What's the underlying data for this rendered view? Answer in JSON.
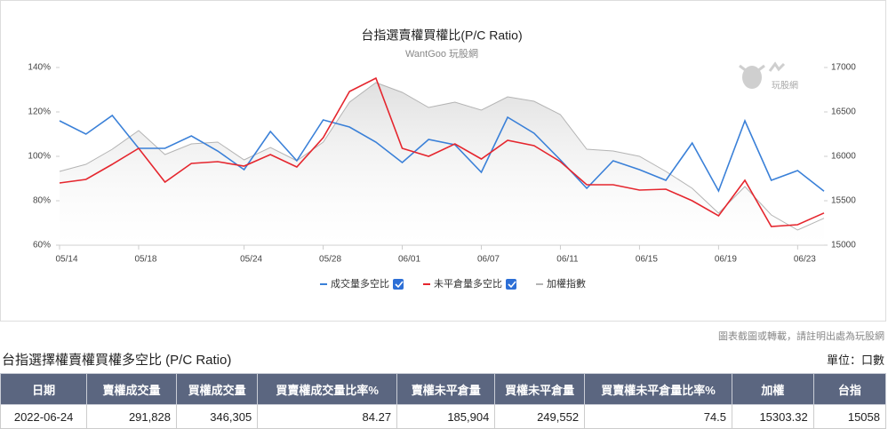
{
  "chart_data": {
    "type": "line",
    "title": "台指選賣權買權比(P/C Ratio)",
    "subtitle": "WantGoo 玩股網",
    "watermark": "玩股網",
    "categories": [
      "05/14",
      null,
      null,
      "05/18",
      null,
      null,
      null,
      "05/24",
      null,
      null,
      "05/28",
      null,
      null,
      "06/01",
      null,
      null,
      "06/07",
      null,
      null,
      "06/11",
      null,
      null,
      "06/15",
      null,
      null,
      "06/19",
      null,
      null,
      "06/23",
      null
    ],
    "ylim": [
      60,
      140
    ],
    "yticks": [
      {
        "value": 60,
        "label": "60%"
      },
      {
        "value": 80,
        "label": "80%"
      },
      {
        "value": 100,
        "label": "100%"
      },
      {
        "value": 120,
        "label": "120%"
      },
      {
        "value": 140,
        "label": "140%"
      }
    ],
    "y2lim": [
      15000,
      17000
    ],
    "y2ticks": [
      15000,
      15500,
      16000,
      16500,
      17000
    ],
    "series": [
      {
        "name": "成交量多空比",
        "color": "#3a80d8",
        "values": [
          116,
          110,
          118.4,
          103.6,
          103.6,
          109.2,
          102.4,
          94,
          111.2,
          98,
          116.4,
          113.2,
          106.4,
          97.2,
          107.6,
          105.2,
          92.8,
          117.6,
          110.4,
          98.4,
          85.6,
          98,
          94,
          89.2,
          106,
          84.4,
          116,
          89.2,
          93.6,
          84.27
        ]
      },
      {
        "name": "未平倉量多空比",
        "color": "#e5262e",
        "values": [
          88,
          89.6,
          96.4,
          103.6,
          88.4,
          96.8,
          97.6,
          95.6,
          100.8,
          95.2,
          108.4,
          129.2,
          135.2,
          103.6,
          100,
          105.6,
          98.8,
          107.2,
          104.8,
          97.6,
          87.2,
          87.2,
          84.8,
          85.2,
          80,
          73.2,
          89.2,
          68.4,
          69.2,
          74.5
        ]
      },
      {
        "name": "加權指數",
        "color": "#b4b4b4",
        "axis": "y2",
        "values": [
          15830,
          15910,
          16080,
          16290,
          16020,
          16140,
          16160,
          15960,
          16100,
          15950,
          16160,
          16610,
          16830,
          16720,
          16550,
          16610,
          16520,
          16670,
          16620,
          16470,
          16080,
          16060,
          16000,
          15830,
          15640,
          15360,
          15660,
          15340,
          15170,
          15303.32
        ]
      }
    ],
    "grid": false
  },
  "table": {
    "note": "圖表截圖或轉載，請註明出處為玩股網",
    "title": "台指選擇權賣權買權多空比 (P/C Ratio)",
    "unit": "單位：口數",
    "headers": [
      "日期",
      "賣權成交量",
      "買權成交量",
      "買賣權成交量比率%",
      "賣權未平倉量",
      "買權未平倉量",
      "買賣權未平倉量比率%",
      "加權",
      "台指"
    ],
    "rows": [
      [
        "2022-06-24",
        "291,828",
        "346,305",
        "84.27",
        "185,904",
        "249,552",
        "74.5",
        "15303.32",
        "15058"
      ]
    ]
  }
}
